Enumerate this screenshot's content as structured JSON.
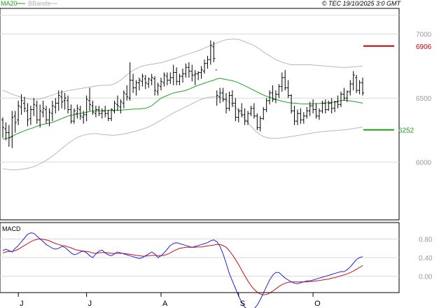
{
  "header": {
    "ma_label": "MA20",
    "bbands_label": "BBands",
    "credit": "© TEC 19/10/2025 3:0 GMT"
  },
  "macd": {
    "label": "MACD",
    "tick_labels": [
      "0.80",
      "0.40",
      "0.00"
    ]
  },
  "levels": {
    "resistance": {
      "label": "6906",
      "value": 6906,
      "color": "#cc0000"
    },
    "support": {
      "label": "6252",
      "value": 6252,
      "color": "#1d9a1d"
    }
  },
  "chart_data": [
    {
      "type": "line",
      "title": "",
      "series_names": [
        "MA20",
        "BBands"
      ],
      "price_axis": {
        "ylim": [
          5550,
          7200
        ],
        "ticks": [
          7000,
          6500,
          6000
        ],
        "tick_labels": [
          "7000",
          "6500",
          "6000"
        ]
      },
      "month_labels": [
        "J",
        "J",
        "A",
        "S",
        "O"
      ],
      "month_index": [
        5,
        27,
        51,
        76,
        100
      ],
      "bars": [
        [
          6330,
          6350,
          6190,
          6270
        ],
        [
          6260,
          6310,
          6170,
          6230
        ],
        [
          6230,
          6290,
          6120,
          6190
        ],
        [
          6200,
          6400,
          6110,
          6350
        ],
        [
          6360,
          6400,
          6230,
          6310
        ],
        [
          6330,
          6480,
          6290,
          6440
        ],
        [
          6430,
          6530,
          6370,
          6480
        ],
        [
          6460,
          6510,
          6390,
          6420
        ],
        [
          6400,
          6460,
          6280,
          6330
        ],
        [
          6340,
          6440,
          6290,
          6410
        ],
        [
          6410,
          6500,
          6360,
          6450
        ],
        [
          6440,
          6480,
          6300,
          6330
        ],
        [
          6330,
          6450,
          6270,
          6400
        ],
        [
          6390,
          6480,
          6350,
          6420
        ],
        [
          6410,
          6440,
          6300,
          6330
        ],
        [
          6330,
          6420,
          6280,
          6390
        ],
        [
          6380,
          6480,
          6320,
          6440
        ],
        [
          6430,
          6500,
          6380,
          6460
        ],
        [
          6460,
          6560,
          6400,
          6520
        ],
        [
          6510,
          6560,
          6420,
          6470
        ],
        [
          6480,
          6540,
          6410,
          6500
        ],
        [
          6480,
          6520,
          6380,
          6410
        ],
        [
          6410,
          6450,
          6300,
          6320
        ],
        [
          6320,
          6420,
          6300,
          6400
        ],
        [
          6380,
          6450,
          6340,
          6420
        ],
        [
          6410,
          6440,
          6330,
          6360
        ],
        [
          6350,
          6400,
          6300,
          6370
        ],
        [
          6370,
          6520,
          6320,
          6490
        ],
        [
          6480,
          6580,
          6400,
          6450
        ],
        [
          6440,
          6480,
          6370,
          6390
        ],
        [
          6380,
          6440,
          6350,
          6410
        ],
        [
          6410,
          6440,
          6360,
          6380
        ],
        [
          6380,
          6420,
          6340,
          6400
        ],
        [
          6400,
          6440,
          6350,
          6380
        ],
        [
          6380,
          6410,
          6320,
          6340
        ],
        [
          6340,
          6420,
          6320,
          6410
        ],
        [
          6400,
          6480,
          6380,
          6460
        ],
        [
          6450,
          6520,
          6400,
          6440
        ],
        [
          6430,
          6490,
          6380,
          6470
        ],
        [
          6460,
          6560,
          6420,
          6540
        ],
        [
          6530,
          6600,
          6480,
          6510
        ],
        [
          6500,
          6780,
          6480,
          6640
        ],
        [
          6640,
          6690,
          6540,
          6580
        ],
        [
          6580,
          6640,
          6520,
          6620
        ],
        [
          6620,
          6660,
          6560,
          6640
        ],
        [
          6630,
          6690,
          6590,
          6670
        ],
        [
          6650,
          6680,
          6570,
          6620
        ],
        [
          6610,
          6660,
          6580,
          6650
        ],
        [
          6640,
          6690,
          6600,
          6660
        ],
        [
          6650,
          6670,
          6520,
          6560
        ],
        [
          6550,
          6620,
          6520,
          6600
        ],
        [
          6590,
          6660,
          6560,
          6630
        ],
        [
          6620,
          6700,
          6590,
          6680
        ],
        [
          6670,
          6700,
          6600,
          6640
        ],
        [
          6640,
          6700,
          6610,
          6660
        ],
        [
          6660,
          6760,
          6600,
          6700
        ],
        [
          6700,
          6740,
          6600,
          6630
        ],
        [
          6630,
          6690,
          6600,
          6670
        ],
        [
          6670,
          6730,
          6620,
          6690
        ],
        [
          6690,
          6770,
          6660,
          6740
        ],
        [
          6740,
          6780,
          6660,
          6710
        ],
        [
          6710,
          6760,
          6630,
          6680
        ],
        [
          6680,
          6720,
          6600,
          6690
        ],
        [
          6690,
          6710,
          6640,
          6700
        ],
        [
          6700,
          6750,
          6650,
          6720
        ],
        [
          6710,
          6800,
          6690,
          6770
        ],
        [
          6770,
          6830,
          6730,
          6800
        ],
        [
          6800,
          6950,
          6760,
          6910
        ],
        [
          6900,
          6940,
          6780,
          6810
        ],
        [
          6720,
          6560,
          6440,
          6520
        ],
        [
          6510,
          6580,
          6460,
          6540
        ],
        [
          6540,
          6580,
          6470,
          6490
        ],
        [
          6490,
          6540,
          6380,
          6420
        ],
        [
          6420,
          6550,
          6400,
          6520
        ],
        [
          6520,
          6560,
          6430,
          6460
        ],
        [
          6460,
          6500,
          6320,
          6350
        ],
        [
          6350,
          6420,
          6310,
          6400
        ],
        [
          6400,
          6460,
          6350,
          6370
        ],
        [
          6370,
          6420,
          6290,
          6320
        ],
        [
          6320,
          6400,
          6290,
          6380
        ],
        [
          6380,
          6440,
          6360,
          6420
        ],
        [
          6420,
          6460,
          6340,
          6360
        ],
        [
          6360,
          6380,
          6250,
          6270
        ],
        [
          6270,
          6360,
          6240,
          6340
        ],
        [
          6340,
          6430,
          6330,
          6410
        ],
        [
          6410,
          6500,
          6390,
          6480
        ],
        [
          6480,
          6560,
          6450,
          6540
        ],
        [
          6540,
          6600,
          6470,
          6490
        ],
        [
          6490,
          6560,
          6460,
          6530
        ],
        [
          6530,
          6610,
          6500,
          6590
        ],
        [
          6590,
          6700,
          6550,
          6660
        ],
        [
          6660,
          6720,
          6560,
          6580
        ],
        [
          6580,
          6640,
          6500,
          6520
        ],
        [
          6520,
          6530,
          6380,
          6400
        ],
        [
          6400,
          6440,
          6290,
          6320
        ],
        [
          6320,
          6410,
          6290,
          6380
        ],
        [
          6380,
          6420,
          6300,
          6330
        ],
        [
          6330,
          6390,
          6300,
          6360
        ],
        [
          6360,
          6430,
          6340,
          6400
        ],
        [
          6400,
          6470,
          6360,
          6440
        ],
        [
          6440,
          6490,
          6380,
          6410
        ],
        [
          6410,
          6460,
          6340,
          6360
        ],
        [
          6360,
          6420,
          6330,
          6400
        ],
        [
          6400,
          6480,
          6380,
          6460
        ],
        [
          6460,
          6490,
          6380,
          6410
        ],
        [
          6410,
          6480,
          6400,
          6460
        ],
        [
          6460,
          6500,
          6380,
          6420
        ],
        [
          6420,
          6480,
          6390,
          6470
        ],
        [
          6470,
          6520,
          6420,
          6450
        ],
        [
          6450,
          6550,
          6430,
          6530
        ],
        [
          6530,
          6580,
          6480,
          6500
        ],
        [
          6500,
          6560,
          6470,
          6550
        ],
        [
          6550,
          6640,
          6520,
          6610
        ],
        [
          6610,
          6710,
          6560,
          6680
        ],
        [
          6660,
          6680,
          6540,
          6560
        ],
        [
          6560,
          6640,
          6530,
          6620
        ],
        [
          6620,
          6660,
          6520,
          6540
        ]
      ],
      "ma20": [
        6180,
        6185,
        6190,
        6200,
        6215,
        6225,
        6235,
        6245,
        6255,
        6262,
        6270,
        6280,
        6288,
        6295,
        6300,
        6305,
        6310,
        6320,
        6330,
        6340,
        6350,
        6360,
        6365,
        6370,
        6375,
        6380,
        6385,
        6390,
        6395,
        6400,
        6400,
        6400,
        6400,
        6402,
        6404,
        6405,
        6405,
        6405,
        6405,
        6408,
        6410,
        6412,
        6414,
        6415,
        6415,
        6418,
        6420,
        6430,
        6440,
        6460,
        6480,
        6500,
        6510,
        6520,
        6530,
        6540,
        6545,
        6550,
        6555,
        6560,
        6570,
        6580,
        6590,
        6600,
        6608,
        6616,
        6625,
        6632,
        6640,
        6650,
        6655,
        6650,
        6645,
        6640,
        6635,
        6628,
        6620,
        6608,
        6596,
        6584,
        6572,
        6560,
        6548,
        6536,
        6524,
        6514,
        6506,
        6498,
        6490,
        6482,
        6476,
        6470,
        6465,
        6462,
        6460,
        6458,
        6456,
        6455,
        6455,
        6455,
        6456,
        6457,
        6458,
        6460,
        6462,
        6464,
        6466,
        6470,
        6475,
        6480,
        6483,
        6480,
        6478,
        6475,
        6470,
        6465,
        6460
      ],
      "bb_upper": [
        6560,
        6552,
        6540,
        6530,
        6522,
        6514,
        6506,
        6500,
        6496,
        6492,
        6490,
        6490,
        6494,
        6500,
        6508,
        6516,
        6524,
        6532,
        6540,
        6546,
        6552,
        6558,
        6562,
        6566,
        6570,
        6574,
        6578,
        6582,
        6586,
        6590,
        6594,
        6598,
        6600,
        6600,
        6600,
        6604,
        6612,
        6624,
        6640,
        6660,
        6680,
        6700,
        6716,
        6730,
        6742,
        6750,
        6756,
        6760,
        6764,
        6768,
        6772,
        6776,
        6782,
        6790,
        6798,
        6806,
        6814,
        6822,
        6830,
        6838,
        6846,
        6854,
        6862,
        6870,
        6880,
        6890,
        6900,
        6910,
        6920,
        6930,
        6940,
        6950,
        6955,
        6958,
        6960,
        6960,
        6958,
        6950,
        6940,
        6930,
        6920,
        6910,
        6895,
        6880,
        6860,
        6845,
        6830,
        6815,
        6800,
        6790,
        6780,
        6772,
        6766,
        6760,
        6760,
        6760,
        6760,
        6760,
        6760,
        6760,
        6758,
        6756,
        6754,
        6752,
        6750,
        6748,
        6746,
        6744,
        6742,
        6740,
        6740,
        6740,
        6742,
        6744,
        6746,
        6748,
        6750
      ],
      "bb_lower": [
        5950,
        5945,
        5942,
        5940,
        5940,
        5942,
        5945,
        5948,
        5952,
        5958,
        5965,
        5975,
        5988,
        6000,
        6015,
        6030,
        6048,
        6066,
        6086,
        6106,
        6126,
        6146,
        6162,
        6178,
        6192,
        6202,
        6210,
        6216,
        6220,
        6222,
        6222,
        6220,
        6216,
        6214,
        6212,
        6210,
        6210,
        6212,
        6216,
        6220,
        6225,
        6230,
        6236,
        6242,
        6250,
        6258,
        6266,
        6276,
        6288,
        6300,
        6314,
        6328,
        6342,
        6356,
        6370,
        6384,
        6396,
        6408,
        6420,
        6432,
        6444,
        6456,
        6468,
        6480,
        6490,
        6498,
        6504,
        6508,
        6510,
        6510,
        6506,
        6498,
        6486,
        6470,
        6450,
        6428,
        6400,
        6370,
        6340,
        6310,
        6280,
        6254,
        6232,
        6214,
        6200,
        6192,
        6188,
        6186,
        6186,
        6188,
        6190,
        6192,
        6196,
        6200,
        6204,
        6208,
        6212,
        6216,
        6220,
        6224,
        6228,
        6232,
        6236,
        6238,
        6240,
        6242,
        6244,
        6246,
        6248,
        6250,
        6252,
        6254,
        6258,
        6262,
        6266,
        6270,
        6274
      ]
    },
    {
      "type": "line",
      "title": "MACD",
      "series_names": [],
      "ylim": [
        -0.35,
        1.15
      ],
      "ticks": [
        0.8,
        0.4,
        0.0
      ],
      "tick_labels": [
        "0.80",
        "0.40",
        "0.00"
      ],
      "macd": [
        0.55,
        0.58,
        0.55,
        0.52,
        0.6,
        0.66,
        0.74,
        0.82,
        0.9,
        0.93,
        0.92,
        0.86,
        0.8,
        0.74,
        0.68,
        0.64,
        0.6,
        0.58,
        0.6,
        0.64,
        0.62,
        0.56,
        0.5,
        0.46,
        0.48,
        0.52,
        0.54,
        0.5,
        0.44,
        0.4,
        0.48,
        0.54,
        0.56,
        0.5,
        0.46,
        0.44,
        0.48,
        0.52,
        0.5,
        0.48,
        0.46,
        0.44,
        0.42,
        0.4,
        0.38,
        0.4,
        0.44,
        0.48,
        0.52,
        0.48,
        0.4,
        0.44,
        0.5,
        0.58,
        0.66,
        0.7,
        0.72,
        0.7,
        0.68,
        0.66,
        0.64,
        0.62,
        0.64,
        0.66,
        0.68,
        0.7,
        0.72,
        0.76,
        0.78,
        0.74,
        0.64,
        0.48,
        0.28,
        0.06,
        -0.1,
        -0.26,
        -0.42,
        -0.56,
        -0.66,
        -0.72,
        -0.74,
        -0.7,
        -0.62,
        -0.5,
        -0.36,
        -0.22,
        -0.08,
        0.02,
        0.08,
        0.08,
        0.02,
        -0.04,
        -0.08,
        -0.12,
        -0.15,
        -0.16,
        -0.14,
        -0.12,
        -0.1,
        -0.1,
        -0.08,
        -0.06,
        -0.04,
        -0.02,
        0.0,
        0.02,
        0.04,
        0.06,
        0.08,
        0.1,
        0.1,
        0.14,
        0.2,
        0.28,
        0.36,
        0.4,
        0.42
      ],
      "signal": [
        0.5,
        0.52,
        0.53,
        0.53,
        0.55,
        0.58,
        0.62,
        0.66,
        0.7,
        0.74,
        0.77,
        0.79,
        0.8,
        0.79,
        0.78,
        0.76,
        0.73,
        0.7,
        0.68,
        0.66,
        0.65,
        0.63,
        0.61,
        0.58,
        0.56,
        0.55,
        0.54,
        0.53,
        0.52,
        0.5,
        0.49,
        0.5,
        0.51,
        0.51,
        0.5,
        0.49,
        0.49,
        0.49,
        0.49,
        0.49,
        0.48,
        0.47,
        0.46,
        0.45,
        0.44,
        0.43,
        0.43,
        0.44,
        0.45,
        0.45,
        0.44,
        0.44,
        0.45,
        0.47,
        0.5,
        0.54,
        0.57,
        0.6,
        0.61,
        0.62,
        0.62,
        0.62,
        0.62,
        0.63,
        0.63,
        0.64,
        0.65,
        0.66,
        0.67,
        0.68,
        0.68,
        0.66,
        0.62,
        0.55,
        0.46,
        0.36,
        0.25,
        0.13,
        0.01,
        -0.1,
        -0.2,
        -0.28,
        -0.34,
        -0.38,
        -0.4,
        -0.39,
        -0.36,
        -0.32,
        -0.27,
        -0.22,
        -0.18,
        -0.15,
        -0.13,
        -0.12,
        -0.12,
        -0.12,
        -0.12,
        -0.12,
        -0.12,
        -0.11,
        -0.11,
        -0.1,
        -0.09,
        -0.08,
        -0.07,
        -0.06,
        -0.04,
        -0.03,
        -0.01,
        0.01,
        0.03,
        0.05,
        0.08,
        0.11,
        0.15,
        0.19,
        0.23
      ]
    }
  ],
  "colors": {
    "price_bars": "#000000",
    "ma20": "#21a321",
    "bbands": "#b8b8b8",
    "macd_line": "#2222dd",
    "signal_line": "#cc1111",
    "grid": "#d8d8d8"
  }
}
